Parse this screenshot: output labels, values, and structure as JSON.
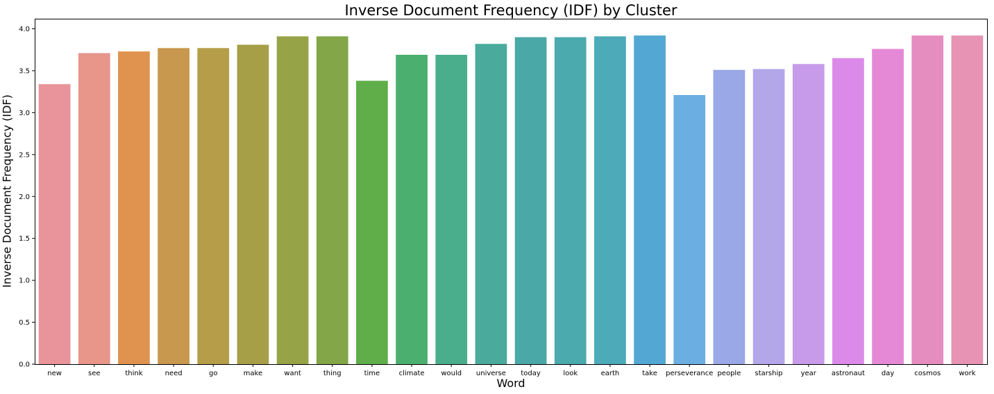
{
  "chart_data": {
    "type": "bar",
    "title": "Inverse Document Frequency (IDF) by Cluster",
    "xlabel": "Word",
    "ylabel": "Inverse Document Frequency (IDF)",
    "ylim": [
      0,
      4.12
    ],
    "yticks": [
      "0.0",
      "0.5",
      "1.0",
      "1.5",
      "2.0",
      "2.5",
      "3.0",
      "3.5",
      "4.0"
    ],
    "grid": false,
    "categories": [
      "new",
      "see",
      "think",
      "need",
      "go",
      "make",
      "want",
      "thing",
      "time",
      "climate",
      "would",
      "universe",
      "today",
      "look",
      "earth",
      "take",
      "perseverance",
      "people",
      "starship",
      "year",
      "astronaut",
      "day",
      "cosmos",
      "work"
    ],
    "values": [
      3.34,
      3.71,
      3.73,
      3.77,
      3.77,
      3.81,
      3.91,
      3.91,
      3.38,
      3.69,
      3.69,
      3.82,
      3.9,
      3.9,
      3.91,
      3.92,
      3.21,
      3.51,
      3.52,
      3.58,
      3.65,
      3.76,
      3.92,
      3.92
    ],
    "colors": [
      "#e8949a",
      "#e8958a",
      "#e0934f",
      "#c8984f",
      "#b59d4a",
      "#a69f48",
      "#96a347",
      "#82a648",
      "#5fae4a",
      "#4bb06f",
      "#4aae8c",
      "#4aab9c",
      "#4aa9a6",
      "#4aaaae",
      "#4caab9",
      "#52a8d3",
      "#6aaee2",
      "#9aa8e7",
      "#b3a7ea",
      "#c79be9",
      "#dc8ae9",
      "#e589d6",
      "#e68dc0",
      "#e693b4"
    ]
  }
}
